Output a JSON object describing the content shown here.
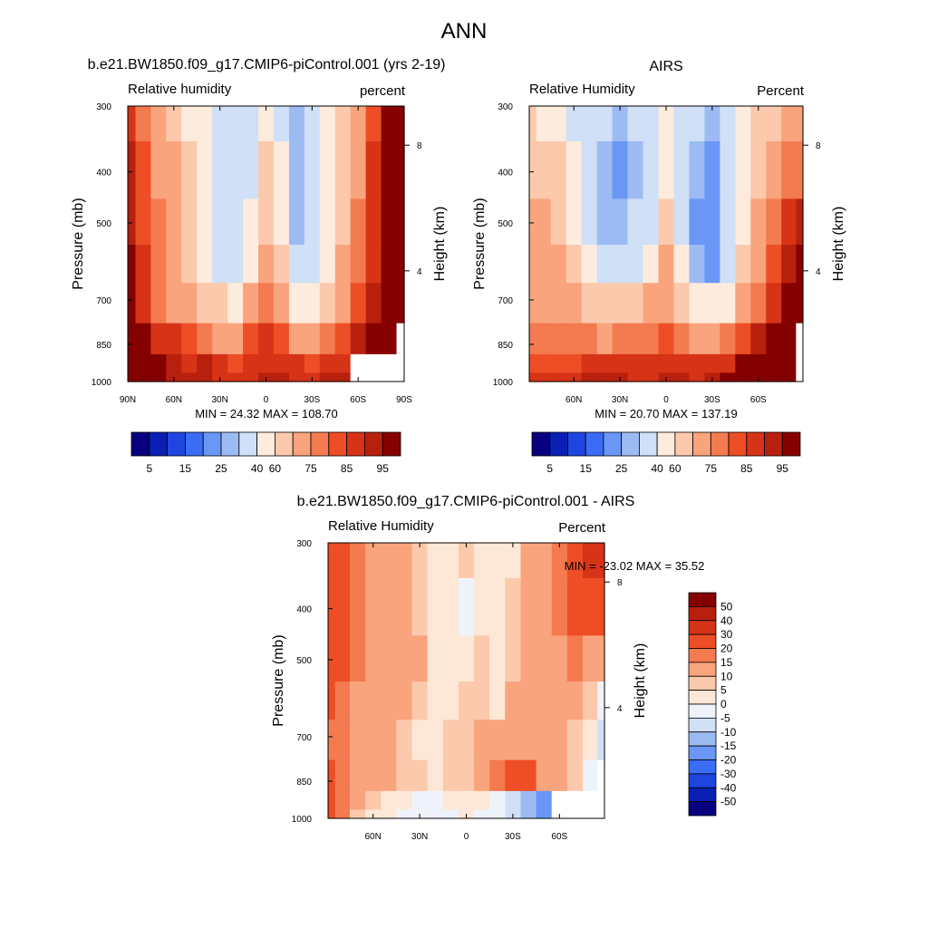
{
  "figure": {
    "title": "ANN"
  },
  "colors": {
    "rh_levels": [
      "#08007f",
      "#0a1fb3",
      "#1f45e0",
      "#3a6cf5",
      "#6a96f6",
      "#9dbbf3",
      "#cfe0f7",
      "#fdebdd",
      "#fcc9ad",
      "#f9a47d",
      "#f47a50",
      "#ee4e25",
      "#d63317",
      "#b8200e",
      "#850100"
    ],
    "diff_levels": [
      "#08007f",
      "#0a1fb3",
      "#1f45e0",
      "#3a6cf5",
      "#6a96f6",
      "#9dbbf3",
      "#cfe0f7",
      "#eef3fb",
      "#fde7d6",
      "#fcc9ad",
      "#f9a47d",
      "#f47a50",
      "#ee4e25",
      "#d63317",
      "#b8200e",
      "#850100"
    ],
    "missing": "#ffffff"
  },
  "chart_data": [
    {
      "type": "heatmap",
      "title": "b.e21.BW1850.f09_g17.CMIP6-piControl.001 (yrs 2-19)",
      "left_label": "Relative humidity",
      "right_label": "percent",
      "ylabel": "Pressure (mb)",
      "ylabel_right": "Height (km)",
      "x_ticks": [
        "90N",
        "60N",
        "30N",
        "0",
        "30S",
        "60S",
        "90S"
      ],
      "x_tick_values": [
        90,
        60,
        30,
        0,
        -30,
        -60,
        -90
      ],
      "xlim": [
        90,
        -90
      ],
      "y_ticks": [
        "300",
        "400",
        "500",
        "700",
        "850",
        "1000"
      ],
      "y_tick_values": [
        300,
        400,
        500,
        700,
        850,
        1000
      ],
      "ylim": [
        300,
        1000
      ],
      "y_scale": "log",
      "height_ticks": [
        "8",
        "4"
      ],
      "height_tick_values": [
        8,
        4
      ],
      "min_max_text": "MIN =  24.32  MAX = 108.70",
      "min": 24.32,
      "max": 108.7,
      "colorbar_orientation": "horizontal",
      "colorbar_labels": [
        "5",
        "15",
        "25",
        "40",
        "60",
        "75",
        "85",
        "95"
      ],
      "levels": [
        5,
        10,
        15,
        20,
        25,
        30,
        40,
        50,
        60,
        70,
        75,
        80,
        85,
        90,
        95
      ],
      "lat": [
        90,
        80,
        70,
        60,
        50,
        40,
        30,
        20,
        10,
        0,
        -10,
        -20,
        -30,
        -40,
        -50,
        -60,
        -70,
        -80,
        -90
      ],
      "p": [
        300,
        400,
        500,
        600,
        700,
        850,
        925,
        1000
      ],
      "values": [
        [
          82,
          72,
          64,
          56,
          48,
          40,
          34,
          32,
          36,
          48,
          38,
          28,
          32,
          42,
          54,
          66,
          76,
          90,
          96
        ],
        [
          86,
          76,
          68,
          60,
          52,
          42,
          35,
          32,
          38,
          52,
          40,
          28,
          30,
          40,
          54,
          68,
          80,
          92,
          98
        ],
        [
          88,
          78,
          70,
          62,
          54,
          44,
          36,
          30,
          40,
          58,
          44,
          28,
          32,
          42,
          56,
          70,
          82,
          94,
          100
        ],
        [
          90,
          80,
          72,
          64,
          56,
          46,
          38,
          34,
          46,
          66,
          52,
          32,
          36,
          46,
          60,
          72,
          84,
          94,
          102
        ],
        [
          90,
          82,
          74,
          68,
          62,
          56,
          50,
          48,
          62,
          74,
          62,
          46,
          46,
          54,
          68,
          76,
          86,
          94,
          100
        ],
        [
          96,
          92,
          84,
          80,
          76,
          72,
          68,
          66,
          76,
          80,
          76,
          68,
          66,
          70,
          78,
          88,
          96,
          100,
          null
        ],
        [
          100,
          96,
          90,
          86,
          84,
          86,
          82,
          76,
          80,
          84,
          84,
          80,
          78,
          80,
          82,
          null,
          null,
          null,
          null
        ],
        [
          108,
          100,
          92,
          88,
          86,
          88,
          84,
          80,
          82,
          86,
          86,
          84,
          84,
          86,
          88,
          null,
          null,
          null,
          null
        ]
      ]
    },
    {
      "type": "heatmap",
      "title": "AIRS",
      "left_label": "Relative Humidity",
      "right_label": "Percent",
      "ylabel": "Pressure (mb)",
      "ylabel_right": "Height (km)",
      "x_ticks": [
        "60N",
        "30N",
        "0",
        "30S",
        "60S"
      ],
      "x_tick_values": [
        60,
        30,
        0,
        -30,
        -60
      ],
      "xlim": [
        89,
        -89
      ],
      "y_ticks": [
        "300",
        "400",
        "500",
        "700",
        "850",
        "1000"
      ],
      "y_tick_values": [
        300,
        400,
        500,
        700,
        850,
        1000
      ],
      "ylim": [
        300,
        1000
      ],
      "y_scale": "log",
      "height_ticks": [
        "8",
        "4"
      ],
      "height_tick_values": [
        8,
        4
      ],
      "min_max_text": "MIN =  20.70  MAX = 137.19",
      "min": 20.7,
      "max": 137.19,
      "colorbar_orientation": "horizontal",
      "colorbar_labels": [
        "5",
        "15",
        "25",
        "40",
        "60",
        "75",
        "85",
        "95"
      ],
      "levels": [
        5,
        10,
        15,
        20,
        25,
        30,
        40,
        50,
        60,
        70,
        75,
        80,
        85,
        90,
        95
      ],
      "lat": [
        89,
        80,
        70,
        60,
        50,
        40,
        30,
        20,
        10,
        0,
        -10,
        -20,
        -30,
        -40,
        -50,
        -60,
        -70,
        -80,
        -89
      ],
      "p": [
        300,
        400,
        500,
        600,
        700,
        850,
        925,
        1000
      ],
      "values": [
        [
          50,
          48,
          44,
          38,
          34,
          30,
          28,
          30,
          34,
          44,
          36,
          30,
          28,
          34,
          42,
          50,
          56,
          60,
          62
        ],
        [
          58,
          56,
          50,
          40,
          32,
          26,
          24,
          28,
          34,
          46,
          34,
          26,
          22,
          30,
          42,
          56,
          64,
          70,
          72
        ],
        [
          64,
          62,
          56,
          46,
          36,
          28,
          26,
          30,
          38,
          52,
          36,
          24,
          20,
          30,
          44,
          62,
          72,
          80,
          86
        ],
        [
          66,
          64,
          60,
          54,
          44,
          34,
          32,
          38,
          48,
          60,
          44,
          28,
          24,
          36,
          50,
          66,
          78,
          88,
          96
        ],
        [
          66,
          64,
          62,
          60,
          56,
          50,
          50,
          56,
          62,
          66,
          56,
          44,
          40,
          48,
          60,
          70,
          82,
          92,
          110
        ],
        [
          72,
          70,
          70,
          70,
          70,
          68,
          70,
          72,
          74,
          76,
          72,
          66,
          64,
          70,
          78,
          88,
          96,
          108,
          null
        ],
        [
          78,
          76,
          76,
          78,
          80,
          82,
          82,
          80,
          80,
          82,
          82,
          80,
          80,
          84,
          90,
          102,
          110,
          120,
          null
        ],
        [
          82,
          80,
          80,
          84,
          86,
          86,
          86,
          84,
          84,
          86,
          86,
          84,
          86,
          90,
          96,
          112,
          126,
          137,
          null
        ]
      ]
    },
    {
      "type": "heatmap",
      "title": "b.e21.BW1850.f09_g17.CMIP6-piControl.001 - AIRS",
      "left_label": "Relative Humidity",
      "right_label": "Percent",
      "ylabel": "Pressure (mb)",
      "ylabel_right": "Height (km)",
      "x_ticks": [
        "60N",
        "30N",
        "0",
        "30S",
        "60S"
      ],
      "x_tick_values": [
        60,
        30,
        0,
        -30,
        -60
      ],
      "xlim": [
        89,
        -89
      ],
      "y_ticks": [
        "300",
        "400",
        "500",
        "700",
        "850",
        "1000"
      ],
      "y_tick_values": [
        300,
        400,
        500,
        700,
        850,
        1000
      ],
      "ylim": [
        300,
        1000
      ],
      "y_scale": "log",
      "height_ticks": [
        "8",
        "4"
      ],
      "height_tick_values": [
        8,
        4
      ],
      "min_max_text": "MIN = -23.02  MAX =  35.52",
      "min": -23.02,
      "max": 35.52,
      "colorbar_orientation": "vertical",
      "colorbar_labels": [
        "50",
        "40",
        "30",
        "20",
        "15",
        "10",
        "5",
        "0",
        "-5",
        "-10",
        "-15",
        "-20",
        "-30",
        "-40",
        "-50"
      ],
      "levels": [
        -50,
        -40,
        -30,
        -20,
        -15,
        -10,
        -5,
        0,
        5,
        10,
        15,
        20,
        30,
        40,
        50
      ],
      "lat": [
        89,
        80,
        70,
        60,
        50,
        40,
        30,
        20,
        10,
        0,
        -10,
        -20,
        -30,
        -40,
        -50,
        -60,
        -70,
        -80,
        -89
      ],
      "p": [
        300,
        400,
        500,
        600,
        700,
        850,
        925,
        1000
      ],
      "values": [
        [
          28,
          24,
          18,
          14,
          12,
          10,
          8,
          4,
          4,
          6,
          4,
          2,
          4,
          10,
          14,
          18,
          24,
          30,
          32
        ],
        [
          26,
          22,
          18,
          14,
          12,
          10,
          8,
          4,
          2,
          -2,
          2,
          2,
          6,
          10,
          14,
          18,
          22,
          26,
          28
        ],
        [
          22,
          20,
          16,
          14,
          12,
          12,
          10,
          4,
          2,
          4,
          6,
          2,
          8,
          10,
          12,
          14,
          16,
          14,
          12
        ],
        [
          20,
          18,
          14,
          12,
          12,
          12,
          8,
          4,
          4,
          6,
          8,
          4,
          10,
          12,
          12,
          14,
          10,
          6,
          -4
        ],
        [
          18,
          16,
          14,
          12,
          10,
          8,
          4,
          2,
          6,
          8,
          10,
          10,
          14,
          14,
          12,
          12,
          8,
          4,
          -10
        ],
        [
          22,
          18,
          14,
          12,
          10,
          8,
          6,
          4,
          8,
          8,
          10,
          16,
          26,
          24,
          14,
          10,
          6,
          -4,
          null
        ],
        [
          20,
          16,
          10,
          6,
          2,
          0,
          -2,
          -4,
          2,
          2,
          0,
          -2,
          -6,
          -12,
          -18,
          null,
          null,
          null,
          null
        ],
        [
          24,
          18,
          8,
          4,
          0,
          -2,
          -2,
          -4,
          -2,
          0,
          -2,
          -4,
          -8,
          -14,
          -20,
          null,
          null,
          null,
          null
        ]
      ]
    }
  ]
}
